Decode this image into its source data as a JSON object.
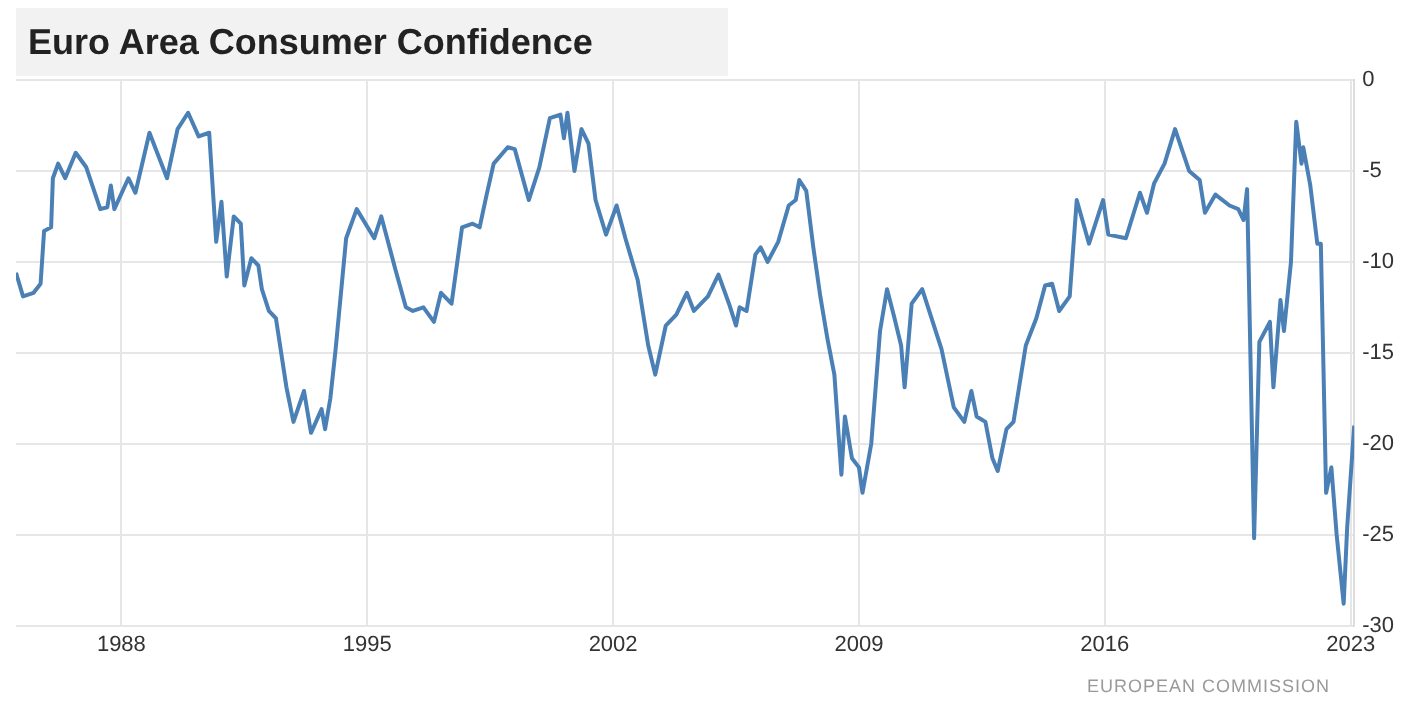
{
  "chart_data": {
    "type": "line",
    "title": "Euro Area Consumer Confidence",
    "x": [
      1985.0,
      1985.2,
      1985.5,
      1985.7,
      1985.8,
      1986.0,
      1986.05,
      1986.2,
      1986.4,
      1986.7,
      1987.0,
      1987.4,
      1987.6,
      1987.7,
      1987.8,
      1988.2,
      1988.4,
      1988.8,
      1989.3,
      1989.6,
      1989.9,
      1990.2,
      1990.5,
      1990.7,
      1990.85,
      1991.0,
      1991.2,
      1991.4,
      1991.5,
      1991.7,
      1991.9,
      1992.0,
      1992.2,
      1992.4,
      1992.7,
      1992.9,
      1993.2,
      1993.4,
      1993.7,
      1993.8,
      1993.95,
      1994.1,
      1994.4,
      1994.7,
      1995.2,
      1995.4,
      1995.8,
      1996.1,
      1996.3,
      1996.6,
      1996.9,
      1997.1,
      1997.4,
      1997.7,
      1998.0,
      1998.2,
      1998.4,
      1998.6,
      1999.0,
      1999.2,
      1999.6,
      1999.9,
      2000.2,
      2000.5,
      2000.6,
      2000.7,
      2000.9,
      2001.1,
      2001.3,
      2001.5,
      2001.8,
      2002.1,
      2002.35,
      2002.7,
      2003.0,
      2003.2,
      2003.5,
      2003.8,
      2003.95,
      2004.1,
      2004.3,
      2004.7,
      2005.0,
      2005.3,
      2005.5,
      2005.6,
      2005.8,
      2006.05,
      2006.2,
      2006.4,
      2006.7,
      2007.0,
      2007.2,
      2007.3,
      2007.5,
      2007.7,
      2007.9,
      2008.1,
      2008.3,
      2008.5,
      2008.6,
      2008.8,
      2009.0,
      2009.1,
      2009.35,
      2009.6,
      2009.8,
      2010.0,
      2010.2,
      2010.3,
      2010.5,
      2010.8,
      2011.1,
      2011.35,
      2011.7,
      2012.0,
      2012.2,
      2012.35,
      2012.6,
      2012.8,
      2012.95,
      2013.2,
      2013.4,
      2013.75,
      2014.05,
      2014.3,
      2014.5,
      2014.7,
      2015.0,
      2015.2,
      2015.55,
      2015.95,
      2016.1,
      2016.6,
      2017.0,
      2017.2,
      2017.4,
      2017.7,
      2018.0,
      2018.4,
      2018.7,
      2018.85,
      2019.15,
      2019.55,
      2019.8,
      2019.95,
      2020.05,
      2020.25,
      2020.4,
      2020.7,
      2020.8,
      2021.0,
      2021.1,
      2021.3,
      2021.45,
      2021.6,
      2021.65,
      2021.85,
      2022.05,
      2022.15,
      2022.3,
      2022.45,
      2022.6,
      2022.7,
      2022.8,
      2022.9,
      2023.1
    ],
    "series": [
      {
        "color": "#4a80b5",
        "values": [
          -10.6,
          -11.9,
          -11.7,
          -11.2,
          -8.3,
          -8.1,
          -5.4,
          -4.6,
          -5.4,
          -4.0,
          -4.8,
          -7.1,
          -7.0,
          -5.8,
          -7.1,
          -5.4,
          -6.2,
          -2.9,
          -5.4,
          -2.7,
          -1.8,
          -3.1,
          -2.9,
          -8.9,
          -6.7,
          -10.8,
          -7.5,
          -7.9,
          -11.3,
          -9.8,
          -10.2,
          -11.5,
          -12.7,
          -13.1,
          -16.9,
          -18.8,
          -17.1,
          -19.4,
          -18.1,
          -19.2,
          -17.5,
          -14.8,
          -8.7,
          -7.1,
          -8.7,
          -7.5,
          -10.4,
          -12.5,
          -12.7,
          -12.5,
          -13.3,
          -11.7,
          -12.3,
          -8.1,
          -7.9,
          -8.1,
          -6.3,
          -4.6,
          -3.7,
          -3.8,
          -6.6,
          -4.8,
          -2.1,
          -1.9,
          -3.2,
          -1.8,
          -5.0,
          -2.7,
          -3.5,
          -6.6,
          -8.5,
          -6.9,
          -8.7,
          -11.0,
          -14.6,
          -16.2,
          -13.5,
          -12.9,
          -12.3,
          -11.7,
          -12.7,
          -11.9,
          -10.7,
          -12.3,
          -13.5,
          -12.5,
          -12.7,
          -9.6,
          -9.2,
          -10.0,
          -8.9,
          -6.9,
          -6.6,
          -5.5,
          -6.1,
          -9.2,
          -11.9,
          -14.2,
          -16.2,
          -21.7,
          -18.5,
          -20.8,
          -21.3,
          -22.7,
          -20.0,
          -13.8,
          -11.5,
          -13.0,
          -14.6,
          -16.9,
          -12.3,
          -11.5,
          -13.3,
          -14.8,
          -18.0,
          -18.8,
          -17.1,
          -18.5,
          -18.8,
          -20.8,
          -21.5,
          -19.2,
          -18.8,
          -14.6,
          -13.1,
          -11.3,
          -11.2,
          -12.7,
          -11.9,
          -6.6,
          -9.0,
          -6.6,
          -8.5,
          -8.7,
          -6.2,
          -7.3,
          -5.7,
          -4.6,
          -2.7,
          -5.0,
          -5.5,
          -7.3,
          -6.3,
          -6.9,
          -7.1,
          -7.7,
          -6.0,
          -25.2,
          -14.4,
          -13.3,
          -16.9,
          -12.1,
          -13.8,
          -10.0,
          -2.3,
          -4.6,
          -3.7,
          -5.8,
          -9.0,
          -9.0,
          -22.7,
          -21.3,
          -25.0,
          -26.9,
          -28.8,
          -24.6,
          -19.0
        ]
      }
    ],
    "xlim": [
      1985.0,
      2023.1
    ],
    "xticks": [
      1988,
      1995,
      2002,
      2009,
      2016,
      2023
    ],
    "ylim": [
      -30,
      0
    ],
    "yticks": [
      -30,
      -25,
      -20,
      -15,
      -10,
      -5,
      0
    ],
    "grid": true,
    "legend": false,
    "marker": "none",
    "line_style": "solid",
    "annotations": [
      "EUROPEAN COMMISSION"
    ]
  }
}
